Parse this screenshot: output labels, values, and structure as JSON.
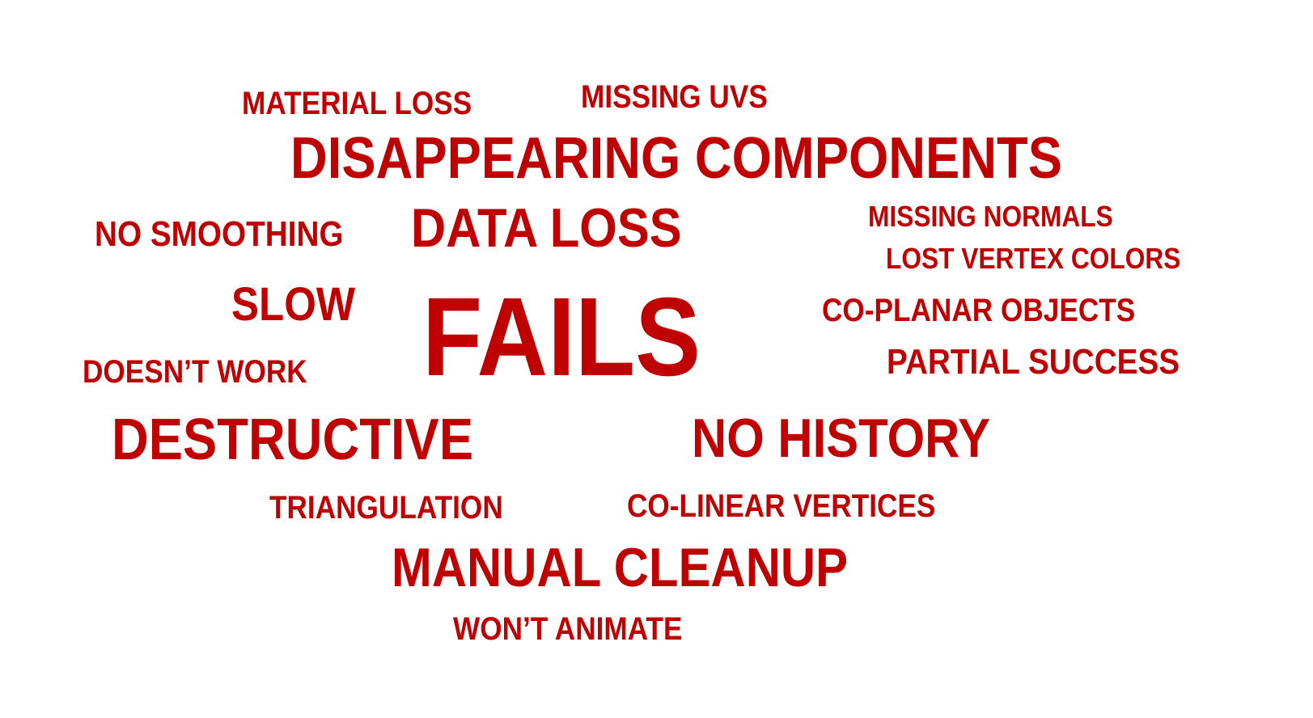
{
  "colors": {
    "background": "#ffffff",
    "text": "#c00000"
  },
  "words": {
    "material_loss": "MATERIAL LOSS",
    "missing_uvs": "MISSING UVS",
    "disappearing_components": "DISAPPEARING COMPONENTS",
    "no_smoothing": "NO SMOOTHING",
    "data_loss": "DATA LOSS",
    "missing_normals": "MISSING NORMALS",
    "lost_vertex_colors": "LOST VERTEX COLORS",
    "slow": "SLOW",
    "fails": "FAILS",
    "co_planar_objects": "CO-PLANAR OBJECTS",
    "doesnt_work": "DOESN’T WORK",
    "partial_success": "PARTIAL SUCCESS",
    "destructive": "DESTRUCTIVE",
    "no_history": "NO HISTORY",
    "triangulation": "TRIANGULATION",
    "co_linear_vertices": "CO-LINEAR VERTICES",
    "manual_cleanup": "MANUAL CLEANUP",
    "wont_animate": "WON’T ANIMATE"
  }
}
